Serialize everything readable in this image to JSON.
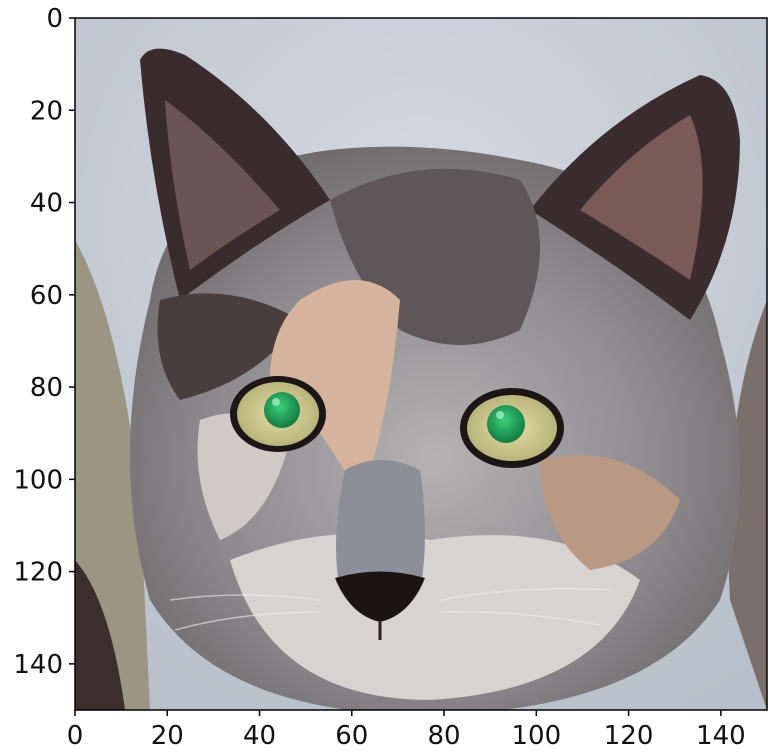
{
  "figure": {
    "type": "image-plot",
    "subject": "cat-face",
    "x_ticks": [
      "0",
      "20",
      "40",
      "60",
      "80",
      "100",
      "120",
      "140"
    ],
    "y_ticks": [
      "0",
      "20",
      "40",
      "60",
      "80",
      "100",
      "120",
      "140"
    ],
    "xlim": [
      0,
      150
    ],
    "ylim": [
      150,
      0
    ]
  },
  "colors": {
    "background": "#c7ced8",
    "fur_grey": "#8b8a8e",
    "fur_dark": "#3b2d2e",
    "fur_peach": "#d9b59c",
    "fur_light": "#d8d6d6",
    "ear_inner": "#6b5050",
    "eye_iris": "#d8d49a",
    "eye_pupil": "#1f9b55",
    "nose": "#1a1414",
    "axis": "#000000"
  }
}
